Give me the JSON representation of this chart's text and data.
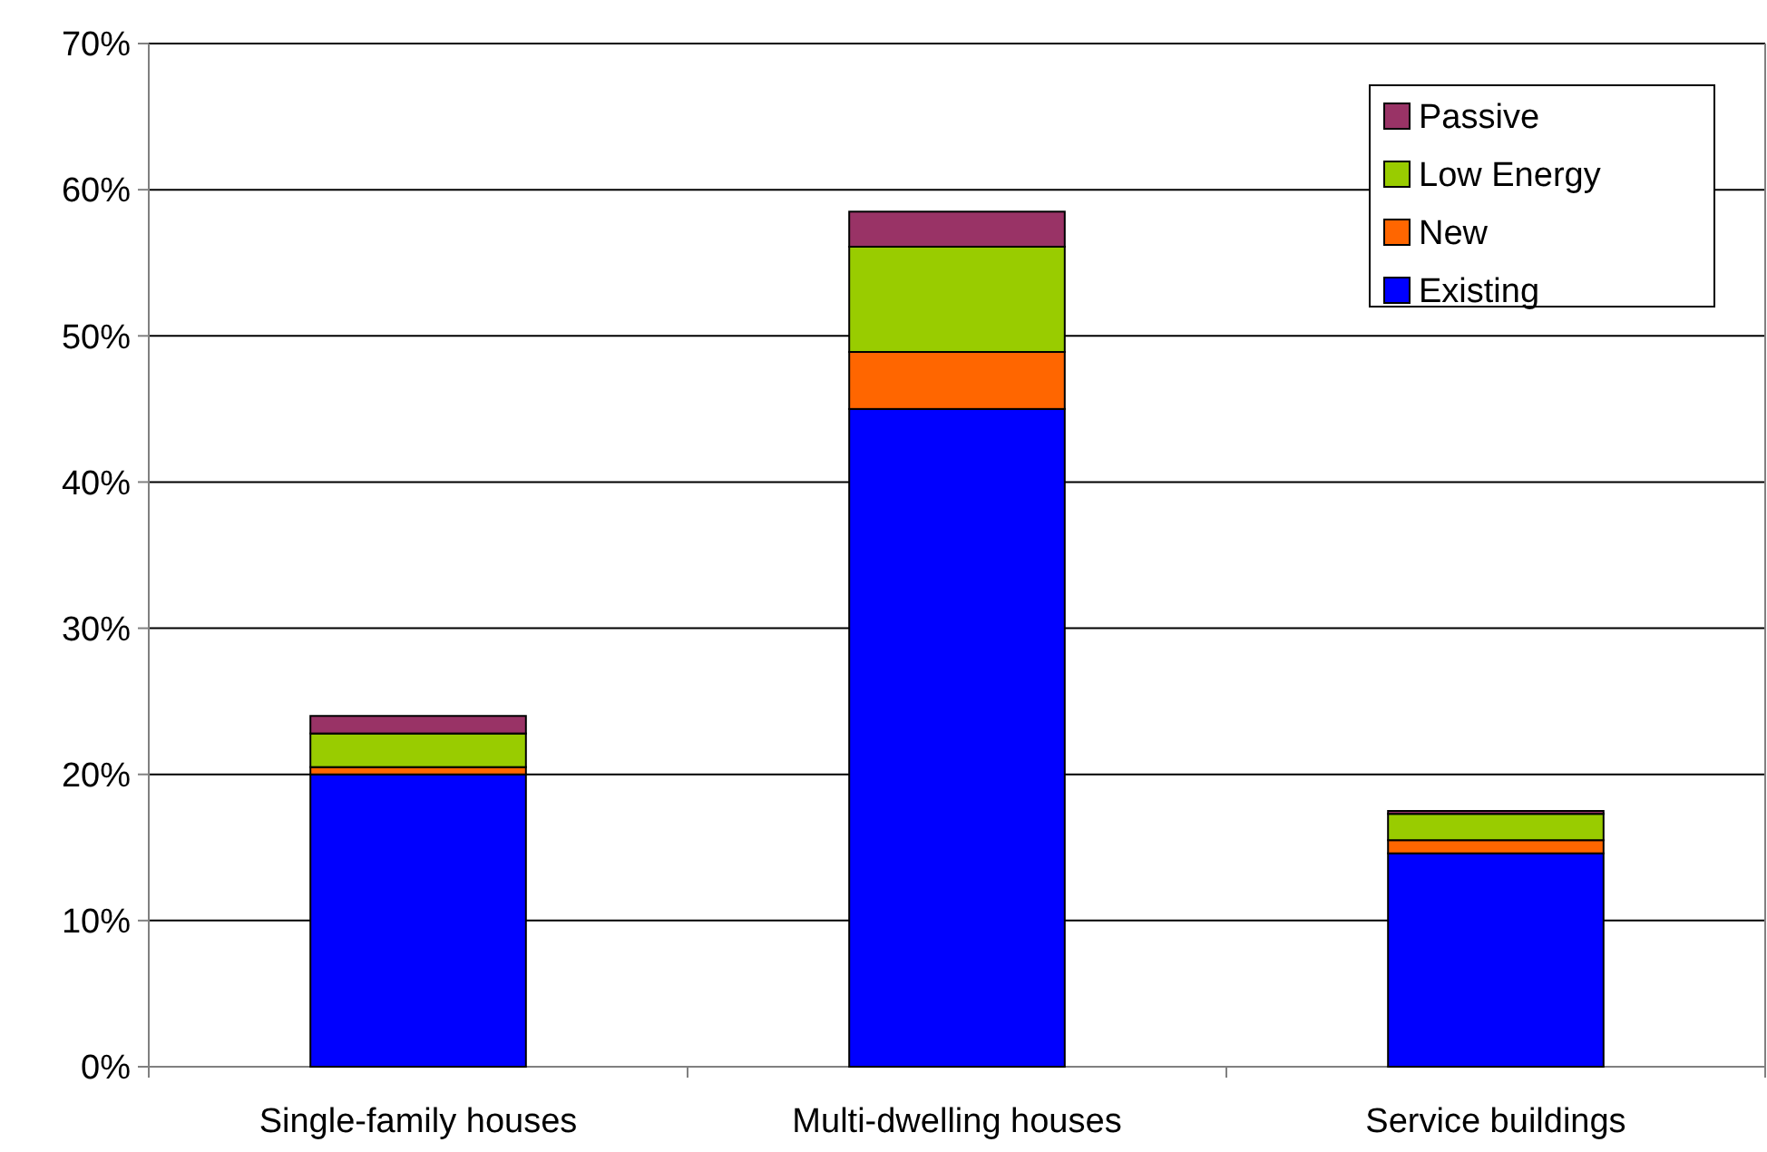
{
  "chart_data": {
    "type": "bar",
    "stacked": true,
    "categories": [
      "Single-family houses",
      "Multi-dwelling houses",
      "Service buildings"
    ],
    "series": [
      {
        "name": "Existing",
        "color": "#0000ff",
        "values": [
          20,
          45,
          14.6
        ]
      },
      {
        "name": "New",
        "color": "#ff6600",
        "values": [
          0.5,
          3.9,
          0.9
        ]
      },
      {
        "name": "Low Energy",
        "color": "#99cc00",
        "values": [
          2.3,
          7.2,
          1.8
        ]
      },
      {
        "name": "Passive",
        "color": "#993366",
        "values": [
          1.2,
          2.4,
          0.2
        ]
      }
    ],
    "ylim": [
      0,
      70
    ],
    "yticks": [
      {
        "value": 0,
        "label": "0%"
      },
      {
        "value": 10,
        "label": "10%"
      },
      {
        "value": 20,
        "label": "20%"
      },
      {
        "value": 30,
        "label": "30%"
      },
      {
        "value": 40,
        "label": "40%"
      },
      {
        "value": 50,
        "label": "50%"
      },
      {
        "value": 60,
        "label": "60%"
      },
      {
        "value": 70,
        "label": "70%"
      }
    ],
    "grid": "y",
    "legend": "top right"
  }
}
